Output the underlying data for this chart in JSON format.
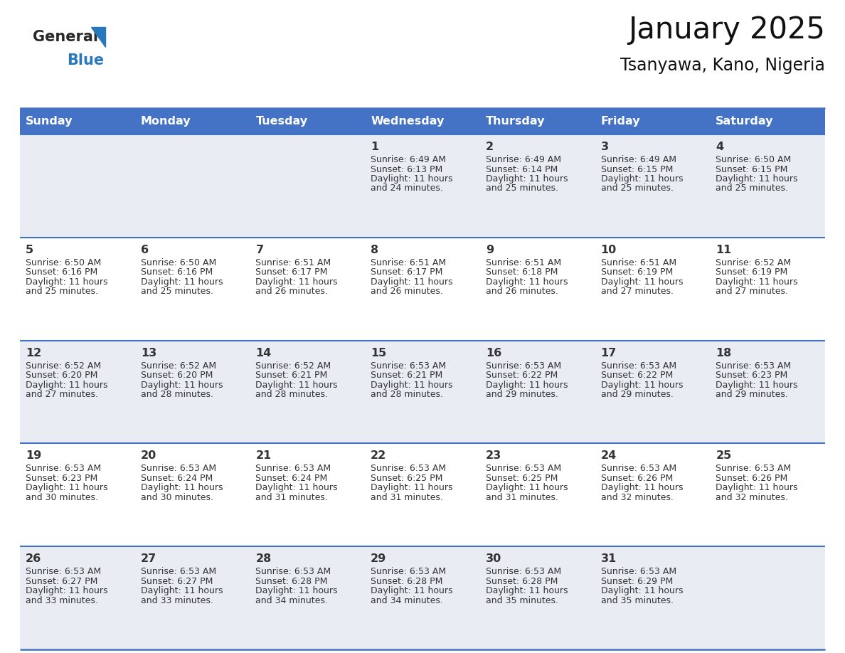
{
  "title": "January 2025",
  "subtitle": "Tsanyawa, Kano, Nigeria",
  "header_bg": "#4472C4",
  "header_text_color": "#FFFFFF",
  "cell_bg_odd": "#EAECF4",
  "cell_bg_even": "#FFFFFF",
  "border_color": "#4472C4",
  "text_color": "#333333",
  "day_headers": [
    "Sunday",
    "Monday",
    "Tuesday",
    "Wednesday",
    "Thursday",
    "Friday",
    "Saturday"
  ],
  "weeks": [
    [
      {
        "day": "",
        "sunrise": "",
        "sunset": "",
        "daylight": ""
      },
      {
        "day": "",
        "sunrise": "",
        "sunset": "",
        "daylight": ""
      },
      {
        "day": "",
        "sunrise": "",
        "sunset": "",
        "daylight": ""
      },
      {
        "day": "1",
        "sunrise": "Sunrise: 6:49 AM",
        "sunset": "Sunset: 6:13 PM",
        "daylight": "Daylight: 11 hours and 24 minutes."
      },
      {
        "day": "2",
        "sunrise": "Sunrise: 6:49 AM",
        "sunset": "Sunset: 6:14 PM",
        "daylight": "Daylight: 11 hours and 25 minutes."
      },
      {
        "day": "3",
        "sunrise": "Sunrise: 6:49 AM",
        "sunset": "Sunset: 6:15 PM",
        "daylight": "Daylight: 11 hours and 25 minutes."
      },
      {
        "day": "4",
        "sunrise": "Sunrise: 6:50 AM",
        "sunset": "Sunset: 6:15 PM",
        "daylight": "Daylight: 11 hours and 25 minutes."
      }
    ],
    [
      {
        "day": "5",
        "sunrise": "Sunrise: 6:50 AM",
        "sunset": "Sunset: 6:16 PM",
        "daylight": "Daylight: 11 hours and 25 minutes."
      },
      {
        "day": "6",
        "sunrise": "Sunrise: 6:50 AM",
        "sunset": "Sunset: 6:16 PM",
        "daylight": "Daylight: 11 hours and 25 minutes."
      },
      {
        "day": "7",
        "sunrise": "Sunrise: 6:51 AM",
        "sunset": "Sunset: 6:17 PM",
        "daylight": "Daylight: 11 hours and 26 minutes."
      },
      {
        "day": "8",
        "sunrise": "Sunrise: 6:51 AM",
        "sunset": "Sunset: 6:17 PM",
        "daylight": "Daylight: 11 hours and 26 minutes."
      },
      {
        "day": "9",
        "sunrise": "Sunrise: 6:51 AM",
        "sunset": "Sunset: 6:18 PM",
        "daylight": "Daylight: 11 hours and 26 minutes."
      },
      {
        "day": "10",
        "sunrise": "Sunrise: 6:51 AM",
        "sunset": "Sunset: 6:19 PM",
        "daylight": "Daylight: 11 hours and 27 minutes."
      },
      {
        "day": "11",
        "sunrise": "Sunrise: 6:52 AM",
        "sunset": "Sunset: 6:19 PM",
        "daylight": "Daylight: 11 hours and 27 minutes."
      }
    ],
    [
      {
        "day": "12",
        "sunrise": "Sunrise: 6:52 AM",
        "sunset": "Sunset: 6:20 PM",
        "daylight": "Daylight: 11 hours and 27 minutes."
      },
      {
        "day": "13",
        "sunrise": "Sunrise: 6:52 AM",
        "sunset": "Sunset: 6:20 PM",
        "daylight": "Daylight: 11 hours and 28 minutes."
      },
      {
        "day": "14",
        "sunrise": "Sunrise: 6:52 AM",
        "sunset": "Sunset: 6:21 PM",
        "daylight": "Daylight: 11 hours and 28 minutes."
      },
      {
        "day": "15",
        "sunrise": "Sunrise: 6:53 AM",
        "sunset": "Sunset: 6:21 PM",
        "daylight": "Daylight: 11 hours and 28 minutes."
      },
      {
        "day": "16",
        "sunrise": "Sunrise: 6:53 AM",
        "sunset": "Sunset: 6:22 PM",
        "daylight": "Daylight: 11 hours and 29 minutes."
      },
      {
        "day": "17",
        "sunrise": "Sunrise: 6:53 AM",
        "sunset": "Sunset: 6:22 PM",
        "daylight": "Daylight: 11 hours and 29 minutes."
      },
      {
        "day": "18",
        "sunrise": "Sunrise: 6:53 AM",
        "sunset": "Sunset: 6:23 PM",
        "daylight": "Daylight: 11 hours and 29 minutes."
      }
    ],
    [
      {
        "day": "19",
        "sunrise": "Sunrise: 6:53 AM",
        "sunset": "Sunset: 6:23 PM",
        "daylight": "Daylight: 11 hours and 30 minutes."
      },
      {
        "day": "20",
        "sunrise": "Sunrise: 6:53 AM",
        "sunset": "Sunset: 6:24 PM",
        "daylight": "Daylight: 11 hours and 30 minutes."
      },
      {
        "day": "21",
        "sunrise": "Sunrise: 6:53 AM",
        "sunset": "Sunset: 6:24 PM",
        "daylight": "Daylight: 11 hours and 31 minutes."
      },
      {
        "day": "22",
        "sunrise": "Sunrise: 6:53 AM",
        "sunset": "Sunset: 6:25 PM",
        "daylight": "Daylight: 11 hours and 31 minutes."
      },
      {
        "day": "23",
        "sunrise": "Sunrise: 6:53 AM",
        "sunset": "Sunset: 6:25 PM",
        "daylight": "Daylight: 11 hours and 31 minutes."
      },
      {
        "day": "24",
        "sunrise": "Sunrise: 6:53 AM",
        "sunset": "Sunset: 6:26 PM",
        "daylight": "Daylight: 11 hours and 32 minutes."
      },
      {
        "day": "25",
        "sunrise": "Sunrise: 6:53 AM",
        "sunset": "Sunset: 6:26 PM",
        "daylight": "Daylight: 11 hours and 32 minutes."
      }
    ],
    [
      {
        "day": "26",
        "sunrise": "Sunrise: 6:53 AM",
        "sunset": "Sunset: 6:27 PM",
        "daylight": "Daylight: 11 hours and 33 minutes."
      },
      {
        "day": "27",
        "sunrise": "Sunrise: 6:53 AM",
        "sunset": "Sunset: 6:27 PM",
        "daylight": "Daylight: 11 hours and 33 minutes."
      },
      {
        "day": "28",
        "sunrise": "Sunrise: 6:53 AM",
        "sunset": "Sunset: 6:28 PM",
        "daylight": "Daylight: 11 hours and 34 minutes."
      },
      {
        "day": "29",
        "sunrise": "Sunrise: 6:53 AM",
        "sunset": "Sunset: 6:28 PM",
        "daylight": "Daylight: 11 hours and 34 minutes."
      },
      {
        "day": "30",
        "sunrise": "Sunrise: 6:53 AM",
        "sunset": "Sunset: 6:28 PM",
        "daylight": "Daylight: 11 hours and 35 minutes."
      },
      {
        "day": "31",
        "sunrise": "Sunrise: 6:53 AM",
        "sunset": "Sunset: 6:29 PM",
        "daylight": "Daylight: 11 hours and 35 minutes."
      },
      {
        "day": "",
        "sunrise": "",
        "sunset": "",
        "daylight": ""
      }
    ]
  ],
  "logo_general_color": "#2a2a2a",
  "logo_blue_color": "#2878BE",
  "logo_triangle_color": "#2878BE",
  "fig_width": 11.88,
  "fig_height": 9.18,
  "dpi": 100
}
